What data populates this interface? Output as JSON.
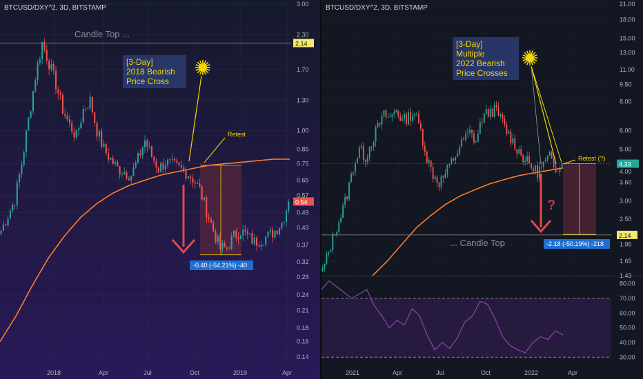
{
  "chart_data": [
    {
      "type": "candlestick",
      "symbol_label": "BTCUSD/DXY^2, 3D, BITSTAMP",
      "y_scale": "log",
      "y_ticks": [
        "3.00",
        "2.30",
        "1.70",
        "1.30",
        "1.00",
        "0.85",
        "0.75",
        "0.65",
        "0.57",
        "0.49",
        "0.43",
        "0.37",
        "0.32",
        "0.28",
        "0.24",
        "0.21",
        "0.18",
        "0.16",
        "0.14"
      ],
      "x_ticks": [
        "2018",
        "Apr",
        "Jul",
        "Oct",
        "2019",
        "Apr"
      ],
      "price_badge": "0.54",
      "level_badge": "2.14",
      "candle_top_label": "Candle Top ...",
      "callout": [
        "[3-Day]",
        "2018 Bearish",
        "Price Cross"
      ],
      "retest_label": "Retest",
      "measure_label": "-0.40 (-54.21%) -40",
      "series": [
        {
          "name": "BTCUSD/DXY^2",
          "style": "candles",
          "close": [
            0.42,
            0.48,
            0.55,
            0.75,
            1.1,
            1.6,
            2.14,
            1.8,
            1.5,
            1.2,
            1.05,
            0.95,
            1.2,
            1.3,
            1.0,
            0.85,
            0.78,
            0.72,
            0.7,
            0.68,
            0.78,
            0.92,
            0.8,
            0.72,
            0.76,
            0.74,
            0.72,
            0.7,
            0.66,
            0.6,
            0.5,
            0.42,
            0.36,
            0.36,
            0.4,
            0.42,
            0.4,
            0.38,
            0.39,
            0.4,
            0.42,
            0.45,
            0.54
          ]
        },
        {
          "name": "moving average",
          "style": "line",
          "values": [
            0.16,
            0.2,
            0.26,
            0.33,
            0.4,
            0.47,
            0.53,
            0.58,
            0.62,
            0.65,
            0.68,
            0.7,
            0.72,
            0.74,
            0.75,
            0.76,
            0.77,
            0.78,
            0.78
          ]
        }
      ]
    },
    {
      "type": "candlestick",
      "symbol_label": "BTCUSD/DXY^2, 3D, BITSTAMP",
      "y_scale": "log",
      "y_ticks": [
        "21.00",
        "18.00",
        "15.00",
        "13.00",
        "11.00",
        "9.50",
        "8.00",
        "6.00",
        "5.00",
        "4.00",
        "3.60",
        "3.00",
        "2.50",
        "1.95",
        "1.65",
        "1.43"
      ],
      "x_ticks": [
        "2021",
        "Apr",
        "Jul",
        "Oct",
        "2022",
        "Apr"
      ],
      "price_badge": "4.33",
      "level_badge": "2.14",
      "candle_top_label": "... Candle Top",
      "callout": [
        "[3-Day]",
        "Multiple",
        "2022 Bearish",
        "Price Crosses"
      ],
      "retest_label": "Retest (?)",
      "question_mark": "?",
      "measure_label": "-2.18 (-50.19%) -218",
      "series": [
        {
          "name": "BTCUSD/DXY^2",
          "style": "candles",
          "close": [
            1.5,
            1.8,
            2.2,
            2.6,
            3.2,
            4.2,
            5.0,
            4.6,
            5.4,
            6.2,
            7.0,
            6.8,
            7.4,
            6.6,
            6.9,
            7.2,
            6.0,
            4.6,
            3.9,
            3.6,
            3.9,
            4.4,
            4.9,
            5.5,
            5.9,
            5.4,
            6.8,
            7.2,
            7.4,
            6.8,
            6.0,
            5.4,
            4.9,
            4.5,
            4.2,
            4.0,
            4.3,
            4.6,
            4.2,
            4.33
          ]
        },
        {
          "name": "moving average",
          "style": "line",
          "values": [
            1.43,
            1.65,
            1.95,
            2.3,
            2.6,
            2.9,
            3.15,
            3.35,
            3.55,
            3.7,
            3.85,
            3.95,
            4.05,
            4.15
          ]
        },
        {
          "name": "oscillator",
          "style": "line",
          "y_ticks": [
            "80.00",
            "70.00",
            "60.00",
            "50.00",
            "40.00",
            "30.00"
          ],
          "bands": [
            30,
            70
          ],
          "values": [
            76,
            82,
            78,
            74,
            70,
            73,
            76,
            65,
            58,
            50,
            55,
            52,
            63,
            58,
            45,
            35,
            40,
            36,
            43,
            54,
            58,
            68,
            66,
            56,
            44,
            38,
            35,
            33,
            40,
            44,
            42,
            48,
            45
          ]
        }
      ]
    }
  ]
}
